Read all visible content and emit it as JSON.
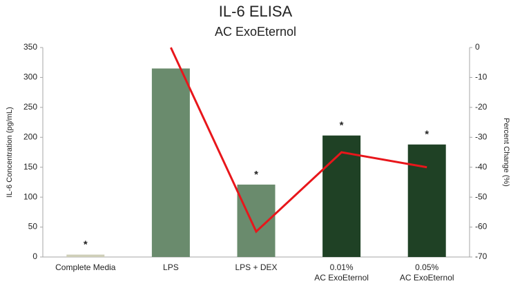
{
  "chart_data": {
    "type": "bar",
    "title": "IL-6 ELISA",
    "subtitle": "AC ExoEternol",
    "ylabel": "IL-6 Concentration (pg/mL)",
    "y2label": "Percent Change (%)",
    "categories": [
      "Complete Media",
      "LPS",
      "LPS + DEX",
      "0.01%\nAC ExoEternol",
      "0.05%\nAC ExoEternol"
    ],
    "series": [
      {
        "type": "bar",
        "values": [
          4,
          315,
          121,
          203,
          188
        ],
        "colors": [
          "#cfcfb8",
          "#6a8b6d",
          "#6a8b6d",
          "#1f4125",
          "#1f4125"
        ],
        "markers": [
          "*",
          null,
          "*",
          "*",
          "*"
        ]
      },
      {
        "type": "line",
        "axis": "y2",
        "values": [
          null,
          0,
          -61.5,
          -35,
          -40
        ],
        "color": "#e8161b"
      }
    ],
    "ylim": [
      0,
      350
    ],
    "yticks": [
      0,
      50,
      100,
      150,
      200,
      250,
      300,
      350
    ],
    "y2lim": [
      -70,
      0
    ],
    "y2ticks": [
      0,
      -10,
      -20,
      -30,
      -40,
      -50,
      -60,
      -70
    ],
    "grid": false
  }
}
